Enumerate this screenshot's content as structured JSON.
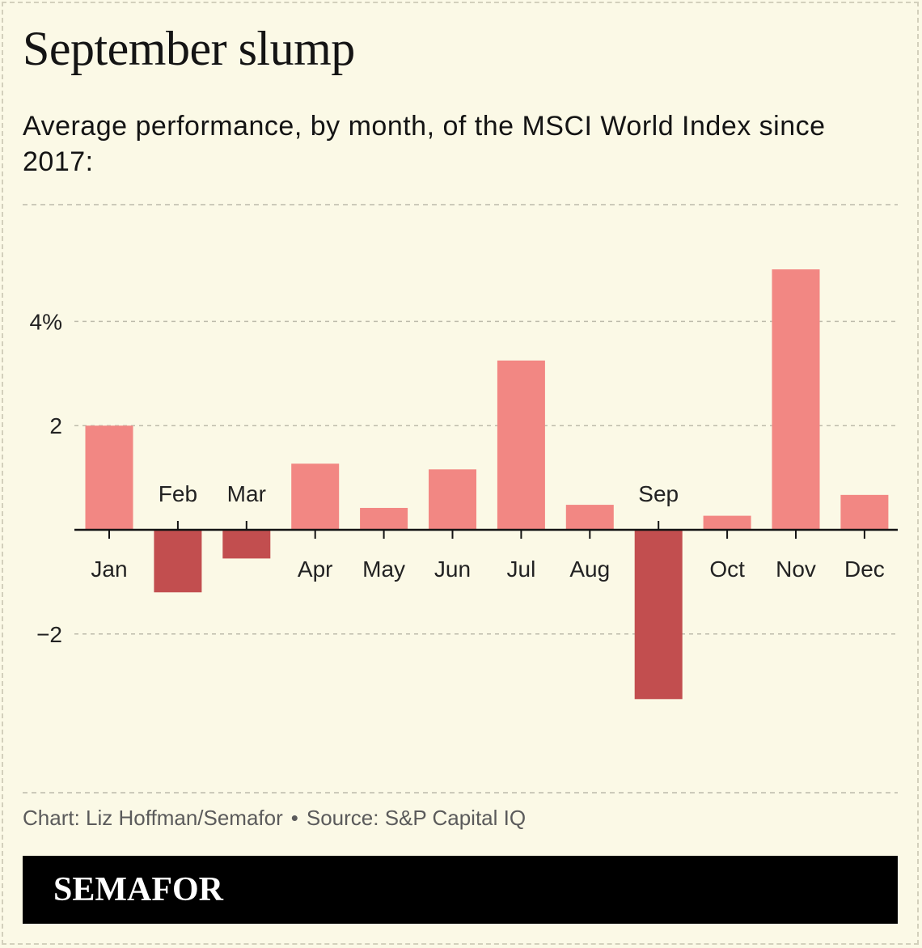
{
  "title": "September slump",
  "subtitle": "Average performance, by month, of the MSCI World Index since 2017:",
  "footer": {
    "credit": "Chart: Liz Hoffman/Semafor",
    "separator": "•",
    "source": "Source: S&P Capital IQ"
  },
  "brand": "SEMAFOR",
  "colors": {
    "positive": "#f28783",
    "negative": "#c24e4f",
    "background": "#fbf9e6",
    "grid": "#bdbbab",
    "axis": "#141414"
  },
  "chart_data": {
    "type": "bar",
    "title": "September slump",
    "subtitle": "Average performance, by month, of the MSCI World Index since 2017:",
    "categories": [
      "Jan",
      "Feb",
      "Mar",
      "Apr",
      "May",
      "Jun",
      "Jul",
      "Aug",
      "Sep",
      "Oct",
      "Nov",
      "Dec"
    ],
    "values": [
      2.0,
      -1.2,
      -0.55,
      1.27,
      0.42,
      1.16,
      3.25,
      0.48,
      -3.25,
      0.27,
      5.0,
      0.67
    ],
    "unit": "%",
    "ylim": [
      -4.0,
      6.2
    ],
    "yticks": [
      -2,
      2,
      4
    ],
    "ytick_labels": [
      "−2",
      "2",
      "4%"
    ],
    "grid": true,
    "legend": "none"
  }
}
